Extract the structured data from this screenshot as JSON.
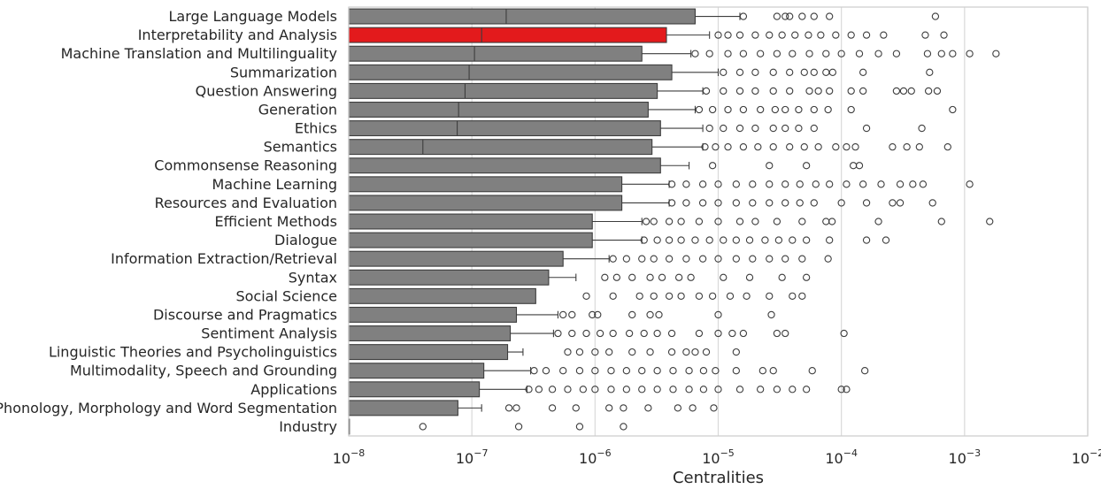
{
  "chart_data": {
    "type": "boxplot",
    "orientation": "horizontal",
    "xscale": "log",
    "xlabel": "Centralities",
    "ylabel": "",
    "xlim_exponents": [
      -8,
      -2
    ],
    "xticks": [
      {
        "base": "10",
        "exp": "−8"
      },
      {
        "base": "10",
        "exp": "−7"
      },
      {
        "base": "10",
        "exp": "−6"
      },
      {
        "base": "10",
        "exp": "−5"
      },
      {
        "base": "10",
        "exp": "−4"
      },
      {
        "base": "10",
        "exp": "−3"
      },
      {
        "base": "10",
        "exp": "−2"
      }
    ],
    "grid": "vertical",
    "colors": {
      "box": "#808080",
      "highlight": "#e31a1c",
      "line": "#3d3d3d",
      "grid": "#d9d9d9",
      "frame": "#cccccc"
    },
    "categories": [
      {
        "name": "Large Language Models",
        "q1": 1e-08,
        "median": 1.9e-07,
        "q3": 6.5e-06,
        "whisker_low": 1e-08,
        "whisker_high": 1.5e-05,
        "highlight": false,
        "outliers": [
          1.6e-05,
          3e-05,
          3.5e-05,
          3.8e-05,
          4.8e-05,
          6e-05,
          8e-05,
          0.00058
        ]
      },
      {
        "name": "Interpretability and Analysis",
        "q1": 1e-08,
        "median": 1.2e-07,
        "q3": 3.8e-06,
        "whisker_low": 1e-08,
        "whisker_high": 8.5e-06,
        "highlight": true,
        "outliers": [
          1e-05,
          1.2e-05,
          1.5e-05,
          2e-05,
          2.6e-05,
          3.3e-05,
          4.2e-05,
          5.4e-05,
          6.8e-05,
          9e-05,
          0.00012,
          0.00016,
          0.00022,
          0.00048,
          0.00068
        ]
      },
      {
        "name": "Machine Translation and Multilinguality",
        "q1": 1e-08,
        "median": 1.05e-07,
        "q3": 2.4e-06,
        "whisker_low": 1e-08,
        "whisker_high": 6e-06,
        "highlight": false,
        "outliers": [
          6.5e-06,
          8.5e-06,
          1.2e-05,
          1.6e-05,
          2.2e-05,
          3e-05,
          4e-05,
          5.5e-05,
          7.5e-05,
          0.0001,
          0.00014,
          0.0002,
          0.00028,
          0.0005,
          0.00065,
          0.0008,
          0.0011,
          0.0018
        ]
      },
      {
        "name": "Summarization",
        "q1": 1e-08,
        "median": 9.5e-08,
        "q3": 4.2e-06,
        "whisker_low": 1e-08,
        "whisker_high": 1e-05,
        "highlight": false,
        "outliers": [
          1.1e-05,
          1.5e-05,
          2e-05,
          2.8e-05,
          3.8e-05,
          5e-05,
          6e-05,
          7.5e-05,
          8.5e-05,
          0.00015,
          0.00052
        ]
      },
      {
        "name": "Question Answering",
        "q1": 1e-08,
        "median": 8.8e-08,
        "q3": 3.2e-06,
        "whisker_low": 1e-08,
        "whisker_high": 7.5e-06,
        "highlight": false,
        "outliers": [
          8e-06,
          1.1e-05,
          1.5e-05,
          2e-05,
          2.8e-05,
          3.8e-05,
          5.5e-05,
          6.5e-05,
          8e-05,
          0.00012,
          0.00015,
          0.00028,
          0.00032,
          0.00037,
          0.00051,
          0.0006
        ]
      },
      {
        "name": "Generation",
        "q1": 1e-08,
        "median": 7.8e-08,
        "q3": 2.7e-06,
        "whisker_low": 1e-08,
        "whisker_high": 6.5e-06,
        "highlight": false,
        "outliers": [
          7e-06,
          9e-06,
          1.2e-05,
          1.6e-05,
          2.2e-05,
          2.9e-05,
          3.5e-05,
          4.5e-05,
          6e-05,
          7.8e-05,
          0.00012,
          0.0008
        ]
      },
      {
        "name": "Ethics",
        "q1": 1e-08,
        "median": 7.6e-08,
        "q3": 3.4e-06,
        "whisker_low": 1e-08,
        "whisker_high": 7.5e-06,
        "highlight": false,
        "outliers": [
          8.5e-06,
          1.1e-05,
          1.5e-05,
          2e-05,
          2.8e-05,
          3.5e-05,
          4.5e-05,
          6e-05,
          0.00016,
          0.00045
        ]
      },
      {
        "name": "Semantics",
        "q1": 1e-08,
        "median": 4e-08,
        "q3": 2.9e-06,
        "whisker_low": 1e-08,
        "whisker_high": 7.5e-06,
        "highlight": false,
        "outliers": [
          7.8e-06,
          9.5e-06,
          1.2e-05,
          1.6e-05,
          2.1e-05,
          2.8e-05,
          3.8e-05,
          5e-05,
          6.5e-05,
          9e-05,
          0.00011,
          0.00013,
          0.00026,
          0.00034,
          0.00043,
          0.00073
        ]
      },
      {
        "name": "Commonsense Reasoning",
        "q1": 1e-08,
        "median": 1e-08,
        "q3": 3.4e-06,
        "whisker_low": 1e-08,
        "whisker_high": 5.8e-06,
        "highlight": false,
        "outliers": [
          9e-06,
          2.6e-05,
          5.2e-05,
          0.000125,
          0.00014
        ]
      },
      {
        "name": "Machine Learning",
        "q1": 1e-08,
        "median": 1e-08,
        "q3": 1.65e-06,
        "whisker_low": 1e-08,
        "whisker_high": 4e-06,
        "highlight": false,
        "outliers": [
          4.2e-06,
          5.5e-06,
          7.5e-06,
          1e-05,
          1.4e-05,
          1.9e-05,
          2.6e-05,
          3.5e-05,
          4.6e-05,
          6.2e-05,
          8e-05,
          0.00011,
          0.00015,
          0.00021,
          0.0003,
          0.00038,
          0.00046,
          0.0011
        ]
      },
      {
        "name": "Resources and Evaluation",
        "q1": 1e-08,
        "median": 1e-08,
        "q3": 1.65e-06,
        "whisker_low": 1e-08,
        "whisker_high": 4e-06,
        "highlight": false,
        "outliers": [
          4.2e-06,
          5.5e-06,
          7.5e-06,
          1e-05,
          1.4e-05,
          1.9e-05,
          2.6e-05,
          3.5e-05,
          4.6e-05,
          6e-05,
          0.0001,
          0.00016,
          0.00026,
          0.0003,
          0.00055
        ]
      },
      {
        "name": "Efficient Methods",
        "q1": 1e-08,
        "median": 1e-08,
        "q3": 9.5e-07,
        "whisker_low": 1e-08,
        "whisker_high": 2.4e-06,
        "highlight": false,
        "outliers": [
          2.6e-06,
          3e-06,
          4e-06,
          5e-06,
          7e-06,
          1e-05,
          1.5e-05,
          2e-05,
          3e-05,
          4.8e-05,
          7.5e-05,
          8.4e-05,
          0.0002,
          0.00065,
          0.0016
        ]
      },
      {
        "name": "Dialogue",
        "q1": 1e-08,
        "median": 1e-08,
        "q3": 9.5e-07,
        "whisker_low": 1e-08,
        "whisker_high": 2.4e-06,
        "highlight": false,
        "outliers": [
          2.5e-06,
          3.2e-06,
          4e-06,
          5e-06,
          6.5e-06,
          8.5e-06,
          1.1e-05,
          1.4e-05,
          1.8e-05,
          2.4e-05,
          3.1e-05,
          4e-05,
          5.2e-05,
          8e-05,
          0.00016,
          0.00023
        ]
      },
      {
        "name": "Information Extraction/Retrieval",
        "q1": 1e-08,
        "median": 1e-08,
        "q3": 5.5e-07,
        "whisker_low": 1e-08,
        "whisker_high": 1.3e-06,
        "highlight": false,
        "outliers": [
          1.4e-06,
          1.8e-06,
          2.4e-06,
          3e-06,
          4e-06,
          5.5e-06,
          7.5e-06,
          1e-05,
          1.4e-05,
          1.9e-05,
          2.6e-05,
          3.5e-05,
          4.8e-05,
          7.8e-05
        ]
      },
      {
        "name": "Syntax",
        "q1": 1e-08,
        "median": 1e-08,
        "q3": 4.2e-07,
        "whisker_low": 1e-08,
        "whisker_high": 7e-07,
        "highlight": false,
        "outliers": [
          1.2e-06,
          1.5e-06,
          2e-06,
          2.8e-06,
          3.5e-06,
          4.8e-06,
          6e-06,
          1.1e-05,
          1.8e-05,
          3.3e-05,
          5.2e-05
        ]
      },
      {
        "name": "Social Science",
        "q1": 1e-08,
        "median": 1e-08,
        "q3": 3.3e-07,
        "whisker_low": 1e-08,
        "whisker_high": 3.3e-07,
        "highlight": false,
        "outliers": [
          8.5e-07,
          1.4e-06,
          2.3e-06,
          3e-06,
          4e-06,
          5e-06,
          7e-06,
          9e-06,
          1.25e-05,
          1.7e-05,
          2.6e-05,
          4e-05,
          4.8e-05
        ]
      },
      {
        "name": "Discourse and Pragmatics",
        "q1": 1e-08,
        "median": 1e-08,
        "q3": 2.3e-07,
        "whisker_low": 1e-08,
        "whisker_high": 5e-07,
        "highlight": false,
        "outliers": [
          5.5e-07,
          6.5e-07,
          9.5e-07,
          1.05e-06,
          2e-06,
          2.8e-06,
          3.3e-06,
          1e-05,
          2.7e-05
        ]
      },
      {
        "name": "Sentiment Analysis",
        "q1": 1e-08,
        "median": 1e-08,
        "q3": 2.05e-07,
        "whisker_low": 1e-08,
        "whisker_high": 4.6e-07,
        "highlight": false,
        "outliers": [
          5e-07,
          6.5e-07,
          8.5e-07,
          1.1e-06,
          1.4e-06,
          1.9e-06,
          2.5e-06,
          3.2e-06,
          4.2e-06,
          7e-06,
          1e-05,
          1.3e-05,
          1.6e-05,
          3e-05,
          3.5e-05,
          0.000105
        ]
      },
      {
        "name": "Linguistic Theories and Psycholinguistics",
        "q1": 1e-08,
        "median": 1e-08,
        "q3": 1.95e-07,
        "whisker_low": 1e-08,
        "whisker_high": 2.6e-07,
        "highlight": false,
        "outliers": [
          6e-07,
          7.5e-07,
          1e-06,
          1.3e-06,
          2e-06,
          2.8e-06,
          4.2e-06,
          5.5e-06,
          6.5e-06,
          8e-06,
          1.4e-05
        ]
      },
      {
        "name": "Multimodality, Speech and Grounding",
        "q1": 1e-08,
        "median": 1e-08,
        "q3": 1.25e-07,
        "whisker_low": 1e-08,
        "whisker_high": 3e-07,
        "highlight": false,
        "outliers": [
          3.2e-07,
          4e-07,
          5.5e-07,
          7.5e-07,
          1e-06,
          1.35e-06,
          1.8e-06,
          2.4e-06,
          3.2e-06,
          4.3e-06,
          5.8e-06,
          7.6e-06,
          9.5e-06,
          1.4e-05,
          2.3e-05,
          2.8e-05,
          5.8e-05,
          0.000155
        ]
      },
      {
        "name": "Applications",
        "q1": 1e-08,
        "median": 1e-08,
        "q3": 1.15e-07,
        "whisker_low": 1e-08,
        "whisker_high": 2.8e-07,
        "highlight": false,
        "outliers": [
          2.9e-07,
          3.5e-07,
          4.5e-07,
          6e-07,
          8e-07,
          1e-06,
          1.35e-06,
          1.8e-06,
          2.4e-06,
          3.2e-06,
          4.3e-06,
          5.8e-06,
          7.6e-06,
          1e-05,
          1.5e-05,
          2.2e-05,
          3e-05,
          4e-05,
          5.2e-05,
          0.0001,
          0.00011
        ]
      },
      {
        "name": "Phonology, Morphology and Word Segmentation",
        "q1": 1e-08,
        "median": 1e-08,
        "q3": 7.7e-08,
        "whisker_low": 1e-08,
        "whisker_high": 1.2e-07,
        "highlight": false,
        "outliers": [
          2e-07,
          2.3e-07,
          4.5e-07,
          7e-07,
          1.3e-06,
          1.7e-06,
          2.7e-06,
          4.7e-06,
          6.2e-06,
          9.2e-06
        ]
      },
      {
        "name": "Industry",
        "q1": 1e-08,
        "median": 1e-08,
        "q3": 1e-08,
        "whisker_low": 1e-08,
        "whisker_high": 1e-08,
        "highlight": false,
        "outliers": [
          4e-08,
          2.4e-07,
          7.5e-07,
          1.7e-06
        ]
      }
    ]
  }
}
